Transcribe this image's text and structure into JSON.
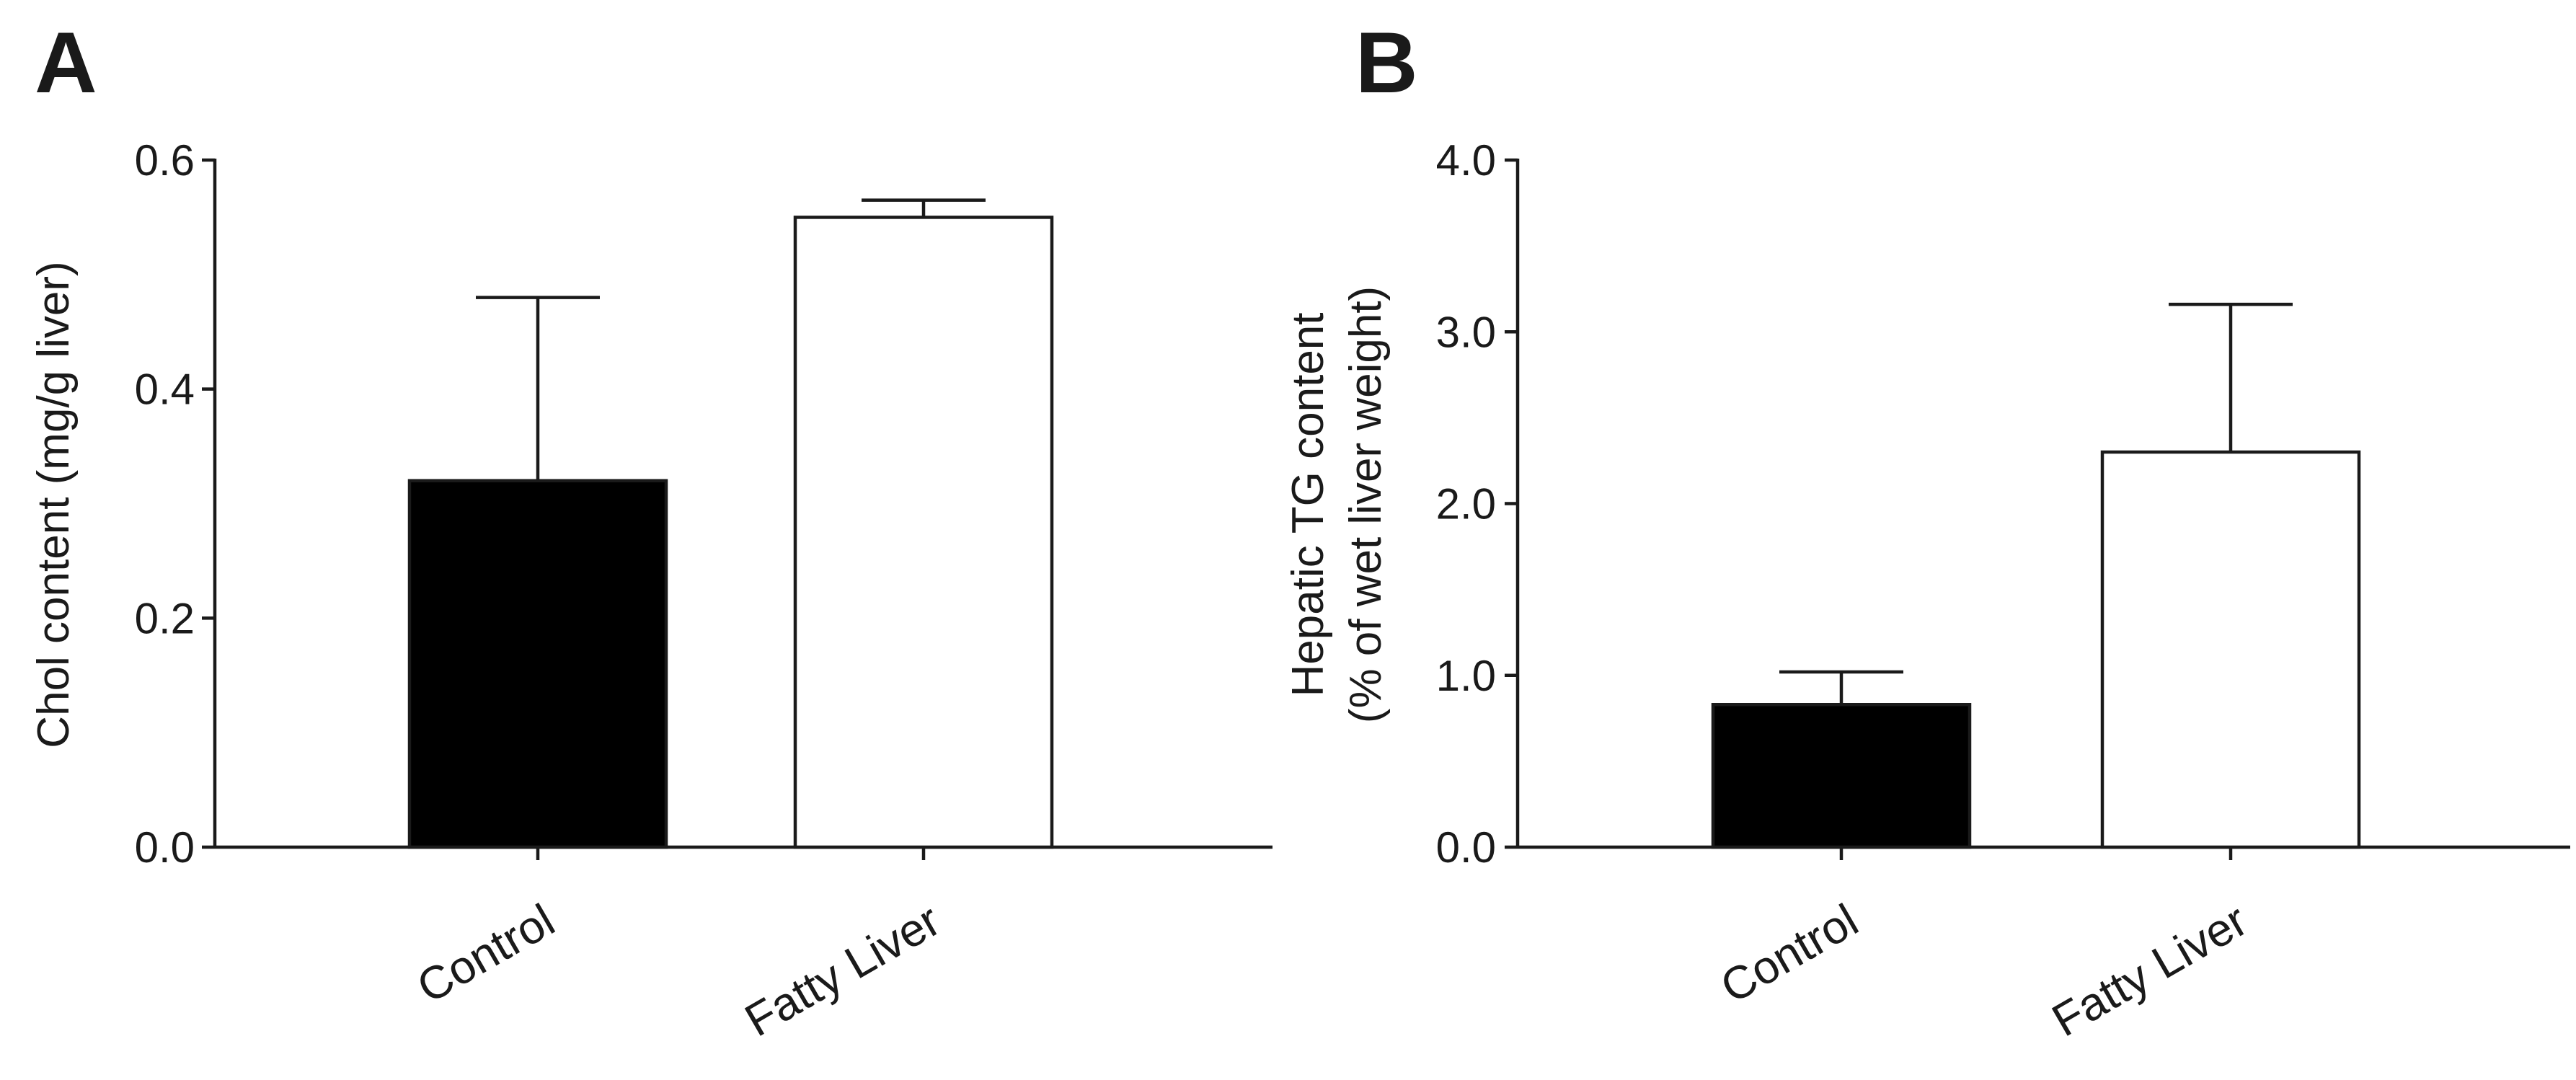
{
  "panels": [
    {
      "label": "A"
    },
    {
      "label": "B"
    }
  ],
  "chart_data": [
    {
      "type": "bar",
      "panel": "A",
      "categories": [
        "Control",
        "Fatty Liver"
      ],
      "values": [
        0.32,
        0.55
      ],
      "errors": [
        0.16,
        0.015
      ],
      "bar_fills": [
        "#000000",
        "#ffffff"
      ],
      "ylabel_lines": [
        "Chol content (mg/g liver)"
      ],
      "ylim": [
        0,
        0.6
      ],
      "yticks": [
        0.0,
        0.2,
        0.4,
        0.6
      ],
      "ytick_labels": [
        "0.0",
        "0.2",
        "0.4",
        "0.6"
      ],
      "grid": false,
      "legend": "none"
    },
    {
      "type": "bar",
      "panel": "B",
      "categories": [
        "Control",
        "Fatty Liver"
      ],
      "values": [
        0.83,
        2.3
      ],
      "errors": [
        0.19,
        0.86
      ],
      "bar_fills": [
        "#000000",
        "#ffffff"
      ],
      "ylabel_lines": [
        "Hepatic TG content",
        "(% of wet liver weight)"
      ],
      "ylim": [
        0,
        4.0
      ],
      "yticks": [
        0.0,
        1.0,
        2.0,
        3.0,
        4.0
      ],
      "ytick_labels": [
        "0.0",
        "1.0",
        "2.0",
        "3.0",
        "4.0"
      ],
      "grid": false,
      "legend": "none"
    }
  ]
}
